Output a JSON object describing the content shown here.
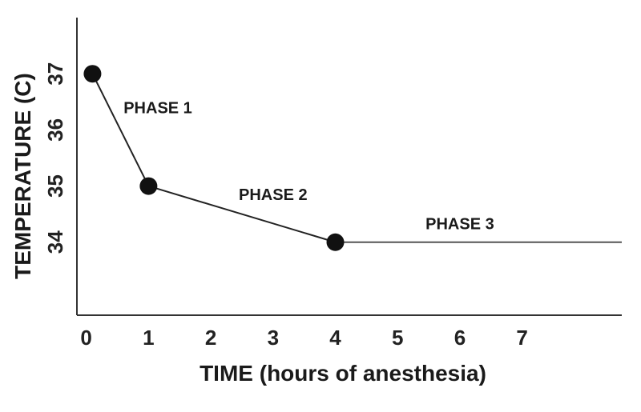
{
  "chart_data": {
    "type": "line",
    "xlabel": "TIME (hours of anesthesia)",
    "ylabel": "TEMPERATURE (C)",
    "x_ticks": [
      "0",
      "1",
      "2",
      "3",
      "4",
      "5",
      "6",
      "7"
    ],
    "y_ticks": [
      "34",
      "35",
      "36",
      "37"
    ],
    "xlim": [
      -0.15,
      8.6
    ],
    "ylim": [
      32.7,
      38.0
    ],
    "grid": false,
    "series": [
      {
        "points": [
          {
            "x": 0.1,
            "y": 37.0
          },
          {
            "x": 1.0,
            "y": 35.0
          },
          {
            "x": 4.0,
            "y": 34.0
          },
          {
            "x": 8.6,
            "y": 34.0
          }
        ],
        "markers": [
          {
            "x": 0.1,
            "y": 37.0
          },
          {
            "x": 1.0,
            "y": 35.0
          },
          {
            "x": 4.0,
            "y": 34.0
          }
        ]
      }
    ],
    "annotations": [
      {
        "text": "PHASE 1",
        "x": 1.15,
        "y": 36.3
      },
      {
        "text": "PHASE 2",
        "x": 3.0,
        "y": 34.75
      },
      {
        "text": "PHASE 3",
        "x": 6.0,
        "y": 34.23
      }
    ]
  }
}
